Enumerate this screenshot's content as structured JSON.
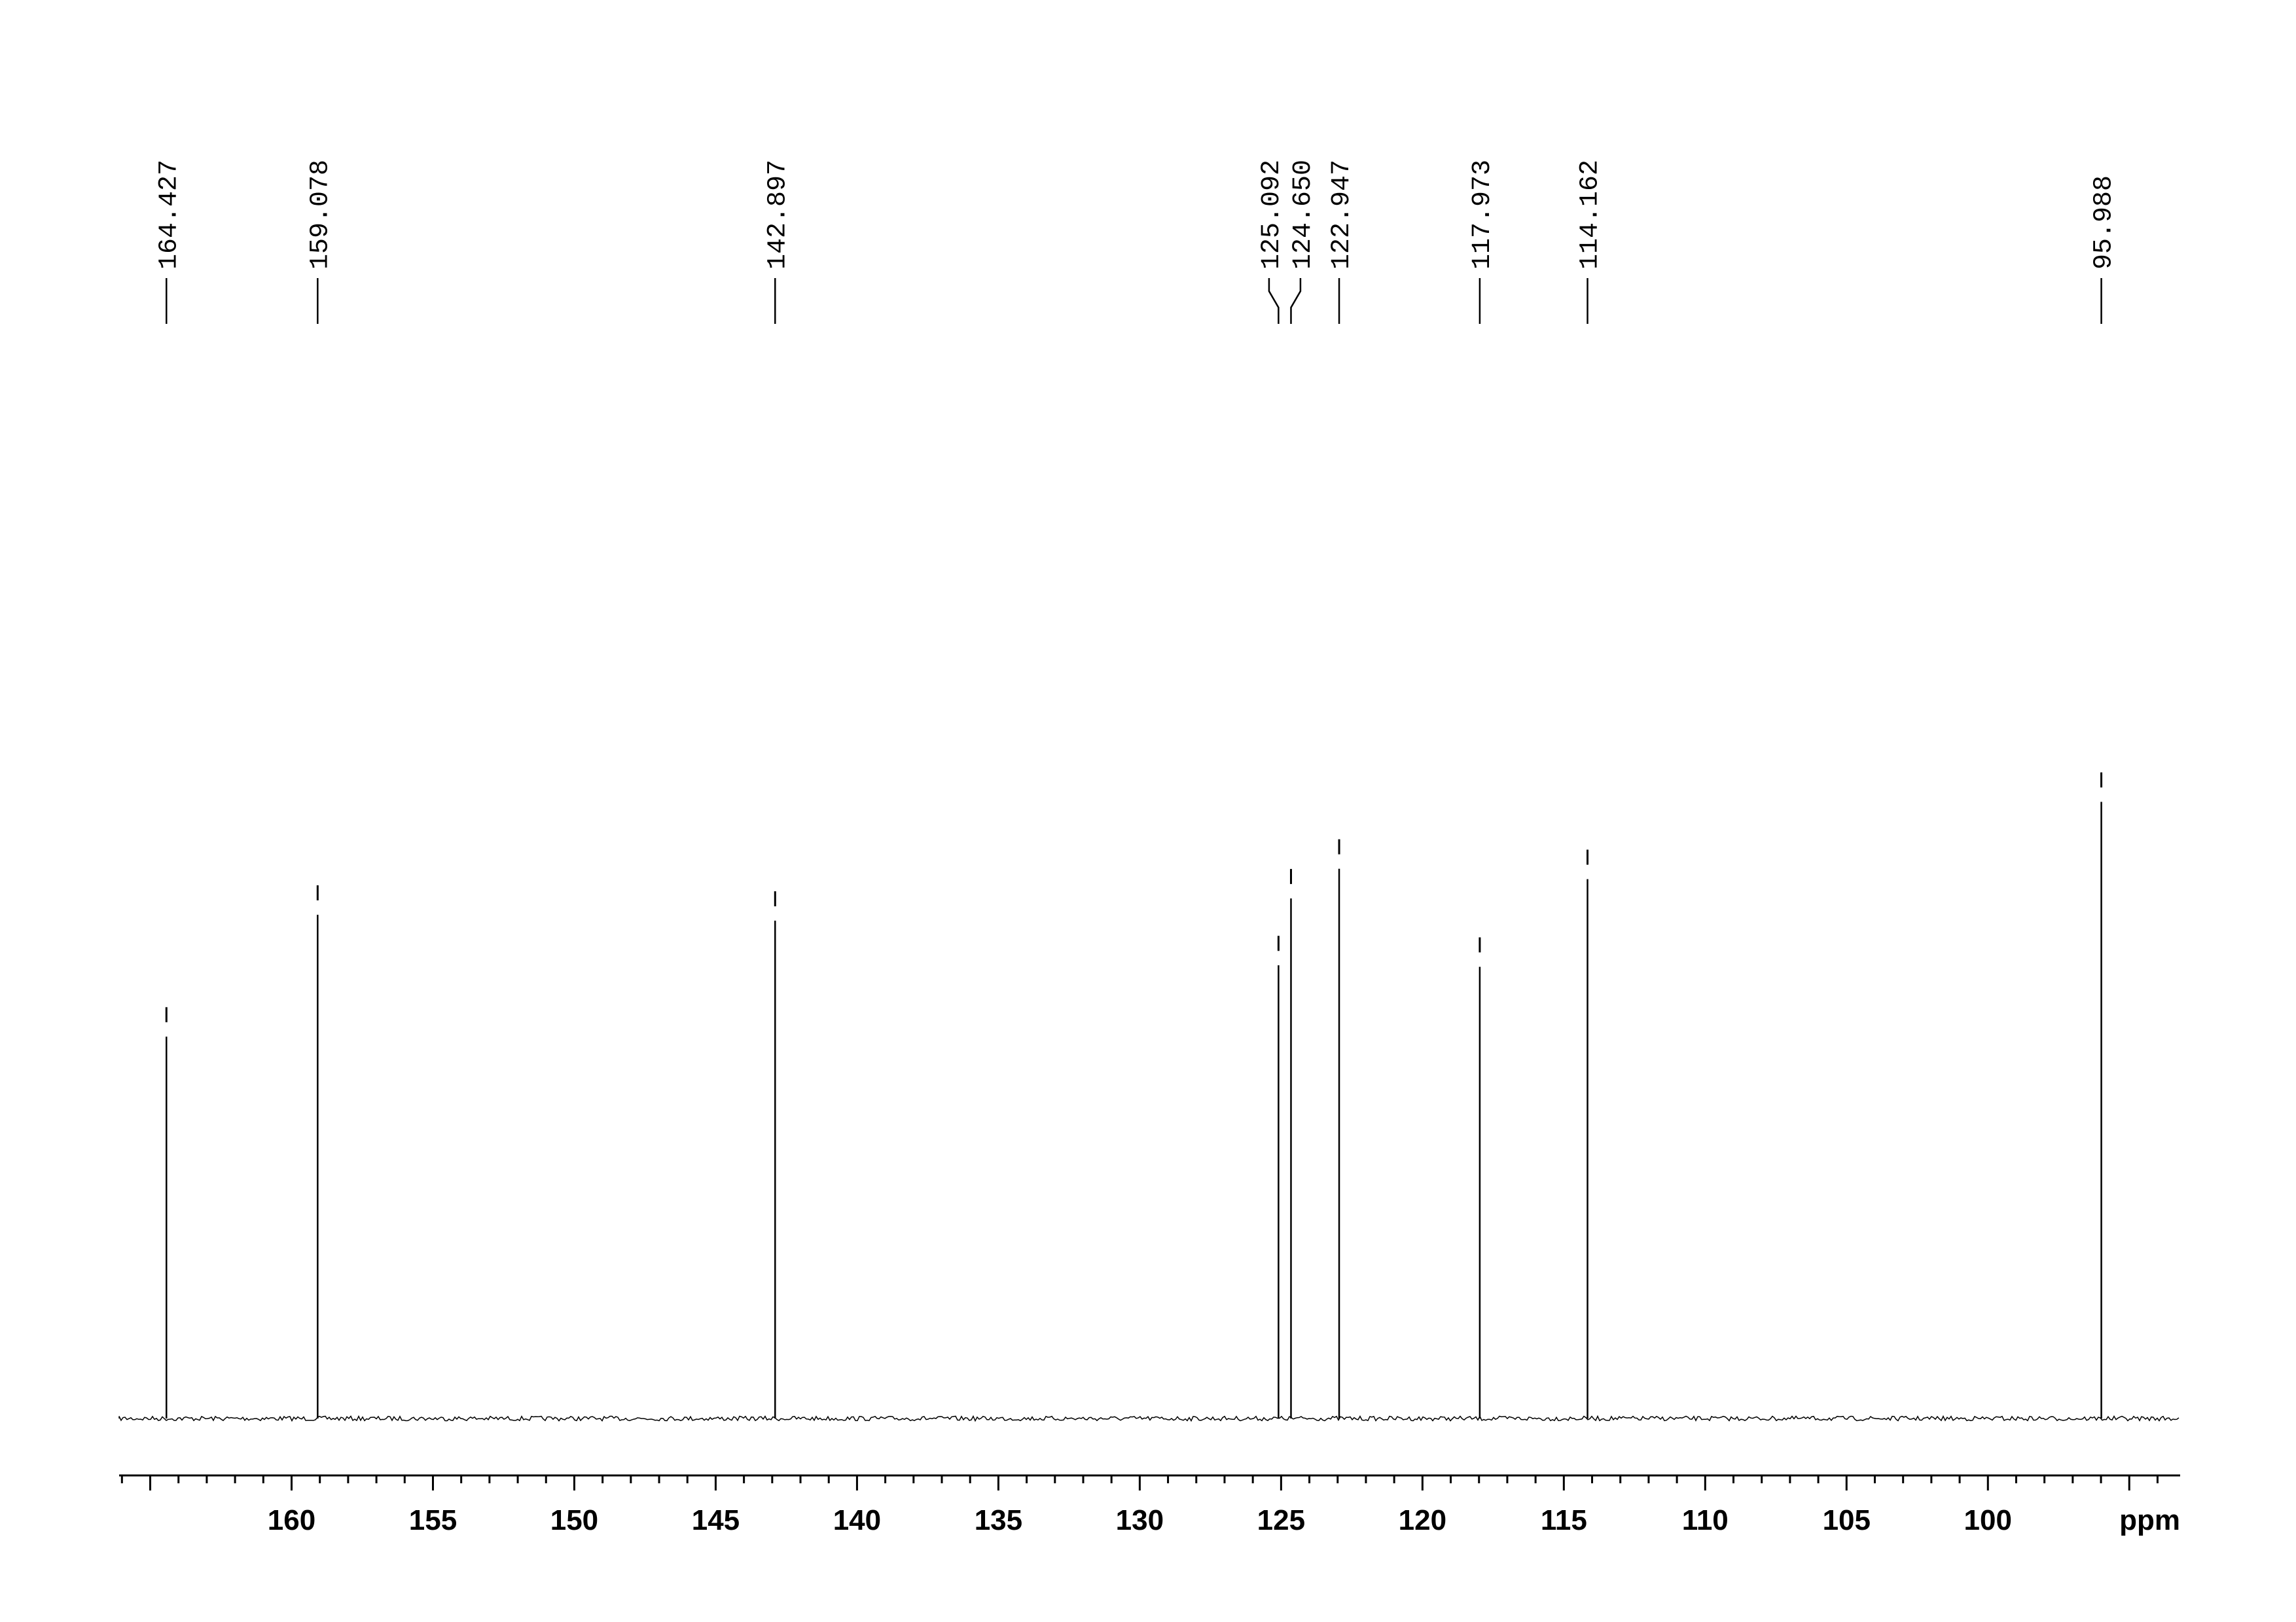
{
  "chart_data": {
    "type": "nmr",
    "x_unit": "ppm",
    "x": [
      164.427,
      159.078,
      142.897,
      125.092,
      {
        "value": 124.65,
        "label": "124.650"
      },
      122.947,
      117.973,
      114.162,
      95.988
    ],
    "values": [
      257,
      339,
      335,
      305,
      350,
      370,
      304,
      363,
      415
    ],
    "color": "#000000",
    "xlim": [
      166.1,
      93.2
    ],
    "xticks": [
      160,
      155,
      150,
      145,
      140,
      135,
      130,
      125,
      120,
      115,
      110,
      105,
      100
    ],
    "xminor": 1,
    "ylim": [
      0,
      450
    ]
  }
}
